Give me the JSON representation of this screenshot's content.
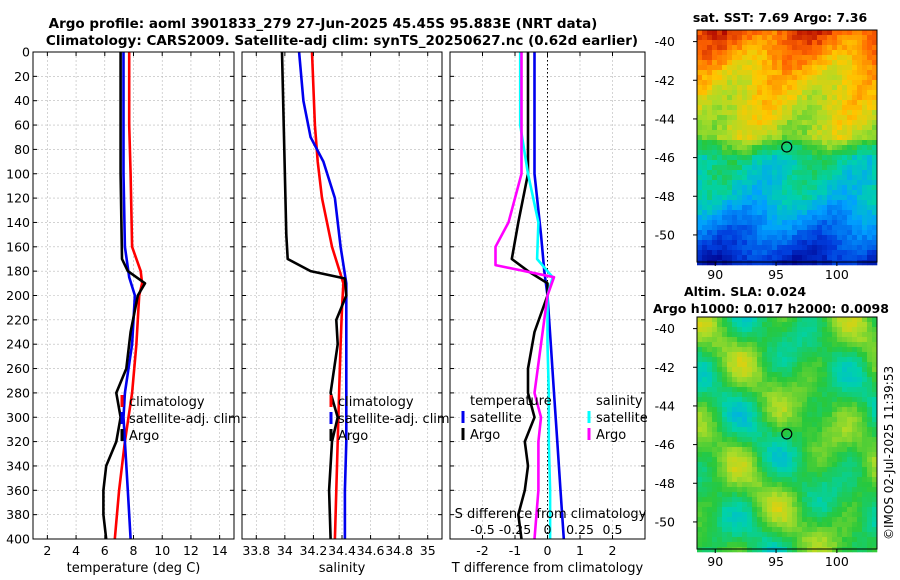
{
  "title": {
    "line1": "Argo profile: aoml 3901833_279 27-Jun-2025 45.45S 95.883E (NRT data)",
    "line2": "Climatology: CARS2009. Satellite-adj clim: synTS_20250627.nc (0.62d earlier)"
  },
  "right_top_title": "sat. SST: 7.69 Argo: 7.36",
  "right_bottom_title1": "Altim. SLA: 0.024",
  "right_bottom_title2": "Argo h1000: 0.017 h2000: 0.0098",
  "copyright": "©IMOS 02-Jul-2025 11:39:53",
  "colors": {
    "climatology": "#ff0000",
    "satellite": "#0000ee",
    "argo": "#000000",
    "satellite_salinity_diff": "#00ffff",
    "argo_salinity_diff": "#ff00ff"
  },
  "chart_data": [
    {
      "type": "line",
      "name": "temperature",
      "xlabel": "temperature (deg C)",
      "ylabel": "depth",
      "xlim": [
        1,
        15
      ],
      "ylim": [
        0,
        400
      ],
      "x_ticks": [
        "2",
        "4",
        "6",
        "8",
        "10",
        "12",
        "14"
      ],
      "y_ticks": [
        "0",
        "20",
        "40",
        "60",
        "80",
        "100",
        "120",
        "140",
        "160",
        "180",
        "200",
        "220",
        "240",
        "260",
        "280",
        "300",
        "320",
        "340",
        "360",
        "380",
        "400"
      ],
      "legend": [
        "climatology",
        "satellite-adj. clim",
        "Argo"
      ],
      "series": [
        {
          "name": "climatology",
          "depth": [
            0,
            60,
            100,
            160,
            180,
            190,
            200,
            240,
            280,
            320,
            360,
            400
          ],
          "values": [
            7.7,
            7.7,
            7.8,
            7.9,
            8.5,
            8.6,
            8.4,
            8.2,
            7.9,
            7.4,
            7.0,
            6.7
          ]
        },
        {
          "name": "satellite-adj. clim",
          "depth": [
            0,
            100,
            160,
            185,
            200,
            240,
            280,
            300,
            320,
            360,
            400
          ],
          "values": [
            7.3,
            7.3,
            7.4,
            7.7,
            8.1,
            7.9,
            7.4,
            7.3,
            7.4,
            7.6,
            7.8
          ]
        },
        {
          "name": "Argo",
          "depth": [
            0,
            100,
            170,
            180,
            190,
            200,
            230,
            260,
            280,
            300,
            320,
            340,
            360,
            380,
            400
          ],
          "values": [
            7.1,
            7.1,
            7.2,
            7.6,
            8.8,
            8.3,
            7.8,
            7.5,
            6.8,
            7.1,
            6.8,
            6.1,
            5.9,
            5.9,
            6.1
          ]
        }
      ]
    },
    {
      "type": "line",
      "name": "salinity",
      "xlabel": "salinity",
      "ylabel": "depth",
      "xlim": [
        33.7,
        35.1
      ],
      "ylim": [
        0,
        400
      ],
      "x_ticks": [
        "33.8",
        "34",
        "34.2",
        "34.4",
        "34.6",
        "34.8",
        "35"
      ],
      "legend": [
        "climatology",
        "satellite-adj. clim",
        "Argo"
      ],
      "series": [
        {
          "name": "climatology",
          "depth": [
            0,
            60,
            90,
            120,
            160,
            190,
            210,
            240,
            280,
            320,
            360,
            400
          ],
          "values": [
            34.19,
            34.21,
            34.23,
            34.26,
            34.33,
            34.41,
            34.4,
            34.39,
            34.38,
            34.37,
            34.36,
            34.35
          ]
        },
        {
          "name": "satellite-adj. clim",
          "depth": [
            0,
            40,
            70,
            90,
            120,
            160,
            190,
            200,
            240,
            280,
            320,
            360,
            400
          ],
          "values": [
            34.1,
            34.13,
            34.18,
            34.27,
            34.35,
            34.39,
            34.43,
            34.43,
            34.43,
            34.43,
            34.43,
            34.42,
            34.42
          ]
        },
        {
          "name": "Argo",
          "depth": [
            0,
            150,
            170,
            180,
            186,
            200,
            220,
            240,
            280,
            300,
            320,
            360,
            400
          ],
          "values": [
            33.98,
            34.01,
            34.02,
            34.18,
            34.42,
            34.43,
            34.36,
            34.37,
            34.32,
            34.37,
            34.33,
            34.31,
            34.32
          ]
        }
      ]
    },
    {
      "type": "line",
      "name": "difference from climatology",
      "xlabel": "T difference from climatology",
      "ylabel": "depth",
      "xlim": [
        -3,
        3
      ],
      "ylim": [
        0,
        400
      ],
      "x_ticks": [
        "-2",
        "-1",
        "0",
        "1",
        "2"
      ],
      "secondary_xlabel": "S difference from climatology",
      "secondary_xlim": [
        -0.75,
        0.75
      ],
      "secondary_x_ticks": [
        "-0.5",
        "-0.25",
        "0",
        "0.25",
        "0.5"
      ],
      "legend_left": {
        "title": "temperature",
        "items": [
          "satellite",
          "Argo"
        ]
      },
      "legend_right": {
        "title": "salinity",
        "items": [
          "satellite",
          "Argo"
        ]
      },
      "series": [
        {
          "name": "temperature satellite",
          "depth": [
            0,
            60,
            100,
            150,
            180,
            200,
            240,
            280,
            320,
            360,
            400
          ],
          "values": [
            -0.4,
            -0.4,
            -0.4,
            -0.2,
            -0.1,
            0,
            0.1,
            0.2,
            0.3,
            0.4,
            0.5
          ]
        },
        {
          "name": "temperature Argo",
          "depth": [
            0,
            60,
            100,
            140,
            170,
            180,
            190,
            200,
            230,
            260,
            280,
            300,
            320,
            340,
            360,
            380,
            400
          ],
          "values": [
            -0.6,
            -0.6,
            -0.6,
            -0.9,
            -1.1,
            -0.6,
            0,
            0,
            -0.4,
            -0.6,
            -0.6,
            -0.4,
            -0.7,
            -0.6,
            -0.7,
            -0.9,
            -0.8
          ]
        },
        {
          "name": "salinity satellite",
          "depth": [
            0,
            60,
            100,
            140,
            170,
            185,
            200,
            240,
            280,
            320,
            360,
            400
          ],
          "values": [
            -0.21,
            -0.21,
            -0.15,
            -0.07,
            -0.08,
            0.04,
            0,
            0,
            0.01,
            0.01,
            0.02,
            0.02
          ]
        },
        {
          "name": "salinity Argo",
          "depth": [
            0,
            60,
            100,
            140,
            160,
            175,
            185,
            200,
            240,
            280,
            300,
            320,
            360,
            400
          ],
          "values": [
            -0.2,
            -0.2,
            -0.2,
            -0.3,
            -0.4,
            -0.4,
            0.05,
            0,
            -0.05,
            -0.1,
            -0.05,
            -0.07,
            -0.07,
            -0.1
          ]
        }
      ]
    },
    {
      "type": "heatmap",
      "name": "satellite SST map",
      "title": "sat. SST: 7.69 Argo: 7.36",
      "x_ticks": [
        "90",
        "95",
        "100"
      ],
      "y_ticks": [
        "-40",
        "-42",
        "-44",
        "-46",
        "-48",
        "-50"
      ],
      "xlim": [
        88.5,
        103.3
      ],
      "ylim": [
        -51.4,
        -39.4
      ],
      "marker": {
        "lon": 95.88,
        "lat": -45.45
      }
    },
    {
      "type": "heatmap",
      "name": "altimetry SLA map",
      "title": "Altim. SLA: 0.024",
      "x_ticks": [
        "90",
        "95",
        "100"
      ],
      "y_ticks": [
        "-40",
        "-42",
        "-44",
        "-46",
        "-48",
        "-50"
      ],
      "xlim": [
        88.5,
        103.3
      ],
      "ylim": [
        -51.4,
        -39.4
      ],
      "marker": {
        "lon": 95.88,
        "lat": -45.45
      }
    }
  ]
}
